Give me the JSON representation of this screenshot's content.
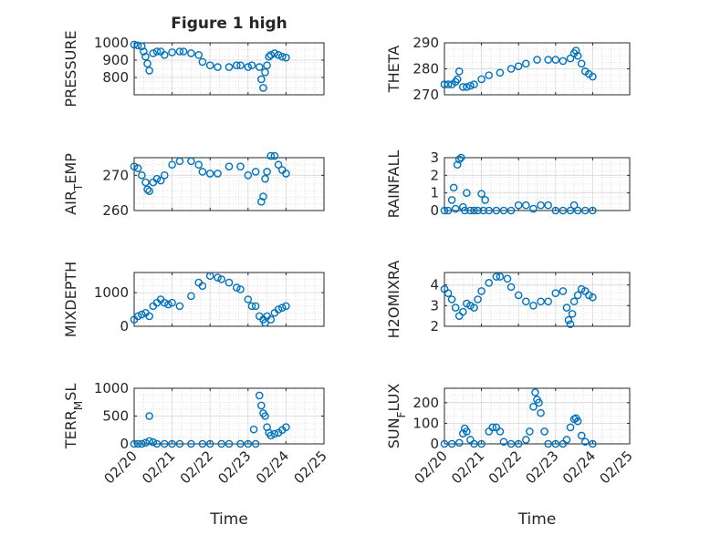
{
  "figure": {
    "title": "Figure 1 high"
  },
  "colors": {
    "marker": "#0072BD",
    "axes": "#262626",
    "grid": "#c8c8c8",
    "background": "#ffffff"
  },
  "chart_data": [
    {
      "type": "scatter",
      "title": "Figure 1 high",
      "ylabel": "PRESSURE",
      "xlabel": "",
      "xlim": [
        0,
        5
      ],
      "ylim": [
        700,
        1000
      ],
      "yticks": [
        800,
        900,
        1000
      ],
      "xticklabels": [],
      "grid": true,
      "marker": "open-circle",
      "x": [
        0.0,
        0.1,
        0.2,
        0.25,
        0.3,
        0.35,
        0.4,
        0.5,
        0.6,
        0.7,
        0.8,
        1.0,
        1.2,
        1.3,
        1.5,
        1.7,
        1.8,
        2.0,
        2.2,
        2.5,
        2.7,
        2.8,
        3.0,
        3.1,
        3.3,
        3.35,
        3.4,
        3.45,
        3.5,
        3.55,
        3.6,
        3.7,
        3.8,
        3.9,
        4.0
      ],
      "y": [
        990,
        985,
        980,
        950,
        920,
        880,
        840,
        940,
        950,
        950,
        930,
        945,
        950,
        950,
        940,
        930,
        890,
        870,
        860,
        860,
        870,
        870,
        860,
        870,
        860,
        790,
        740,
        830,
        870,
        920,
        930,
        940,
        930,
        920,
        915
      ]
    },
    {
      "type": "scatter",
      "title": "",
      "ylabel": "THETA",
      "xlabel": "",
      "xlim": [
        0,
        5
      ],
      "ylim": [
        270,
        290
      ],
      "yticks": [
        270,
        280,
        290
      ],
      "xticklabels": [],
      "grid": true,
      "marker": "open-circle",
      "x": [
        0.0,
        0.1,
        0.2,
        0.3,
        0.35,
        0.4,
        0.5,
        0.6,
        0.7,
        0.8,
        1.0,
        1.2,
        1.5,
        1.8,
        2.0,
        2.2,
        2.5,
        2.8,
        3.0,
        3.2,
        3.4,
        3.5,
        3.55,
        3.6,
        3.7,
        3.8,
        3.9,
        4.0
      ],
      "y": [
        274,
        274,
        274,
        275,
        276,
        279,
        273,
        273,
        273.5,
        274,
        276,
        277.5,
        278.5,
        280,
        281,
        282,
        283.5,
        283.5,
        283.5,
        283,
        284,
        286,
        287,
        285,
        282,
        279,
        278,
        277
      ]
    },
    {
      "type": "scatter",
      "title": "",
      "ylabel": "AIR_TEMP",
      "xlabel": "",
      "xlim": [
        0,
        5
      ],
      "ylim": [
        260,
        275
      ],
      "yticks": [
        260,
        270
      ],
      "xticklabels": [],
      "grid": true,
      "marker": "open-circle",
      "x": [
        0.0,
        0.1,
        0.2,
        0.3,
        0.35,
        0.4,
        0.5,
        0.6,
        0.7,
        0.8,
        1.0,
        1.2,
        1.5,
        1.7,
        1.8,
        2.0,
        2.2,
        2.5,
        2.8,
        3.0,
        3.2,
        3.35,
        3.4,
        3.45,
        3.5,
        3.6,
        3.7,
        3.8,
        3.9,
        4.0
      ],
      "y": [
        272.5,
        272,
        270,
        268,
        266,
        265.5,
        268,
        269,
        268.5,
        270,
        273,
        274,
        274,
        273,
        271,
        270.5,
        270.5,
        272.5,
        272.5,
        270,
        271,
        262.5,
        264,
        269,
        271,
        275.5,
        275.5,
        273,
        271.5,
        270.5
      ]
    },
    {
      "type": "scatter",
      "title": "",
      "ylabel": "RAINFALL",
      "xlabel": "",
      "xlim": [
        0,
        5
      ],
      "ylim": [
        0,
        3
      ],
      "yticks": [
        0,
        1,
        2,
        3
      ],
      "xticklabels": [],
      "grid": true,
      "marker": "open-circle",
      "x": [
        0.0,
        0.1,
        0.2,
        0.25,
        0.3,
        0.35,
        0.4,
        0.45,
        0.5,
        0.55,
        0.6,
        0.7,
        0.8,
        0.9,
        1.0,
        1.05,
        1.1,
        1.2,
        1.4,
        1.6,
        1.8,
        2.0,
        2.2,
        2.4,
        2.6,
        2.8,
        3.0,
        3.2,
        3.4,
        3.5,
        3.6,
        3.8,
        4.0
      ],
      "y": [
        0,
        0,
        0.6,
        1.3,
        0.1,
        2.6,
        2.9,
        3.0,
        0.2,
        0,
        1.0,
        0,
        0,
        0,
        0.95,
        0,
        0.6,
        0,
        0,
        0,
        0,
        0.3,
        0.3,
        0.1,
        0.3,
        0.3,
        0,
        0,
        0,
        0.3,
        0,
        0,
        0
      ]
    },
    {
      "type": "scatter",
      "title": "",
      "ylabel": "MIXDEPTH",
      "xlabel": "",
      "xlim": [
        0,
        5
      ],
      "ylim": [
        0,
        1600
      ],
      "yticks": [
        0,
        1000
      ],
      "xticklabels": [],
      "grid": true,
      "marker": "open-circle",
      "x": [
        0.0,
        0.1,
        0.2,
        0.3,
        0.4,
        0.5,
        0.6,
        0.7,
        0.8,
        0.9,
        1.0,
        1.2,
        1.5,
        1.7,
        1.8,
        2.0,
        2.2,
        2.3,
        2.5,
        2.7,
        2.8,
        3.0,
        3.1,
        3.2,
        3.3,
        3.4,
        3.45,
        3.5,
        3.6,
        3.7,
        3.8,
        3.9,
        4.0
      ],
      "y": [
        200,
        300,
        350,
        400,
        300,
        600,
        700,
        800,
        700,
        650,
        700,
        600,
        900,
        1300,
        1200,
        1500,
        1450,
        1400,
        1300,
        1150,
        1100,
        800,
        600,
        600,
        300,
        200,
        100,
        300,
        200,
        400,
        500,
        550,
        600
      ]
    },
    {
      "type": "scatter",
      "title": "",
      "ylabel": "H2OMIXRA",
      "xlabel": "",
      "xlim": [
        0,
        5
      ],
      "ylim": [
        2,
        4.6
      ],
      "yticks": [
        2,
        3,
        4
      ],
      "xticklabels": [],
      "grid": true,
      "marker": "open-circle",
      "x": [
        0.0,
        0.1,
        0.2,
        0.3,
        0.4,
        0.5,
        0.6,
        0.7,
        0.8,
        0.9,
        1.0,
        1.2,
        1.4,
        1.5,
        1.7,
        1.8,
        2.0,
        2.2,
        2.4,
        2.6,
        2.8,
        3.0,
        3.2,
        3.3,
        3.35,
        3.4,
        3.45,
        3.5,
        3.6,
        3.7,
        3.8,
        3.9,
        4.0
      ],
      "y": [
        3.8,
        3.6,
        3.3,
        2.9,
        2.5,
        2.7,
        3.1,
        3.0,
        2.9,
        3.3,
        3.7,
        4.1,
        4.4,
        4.4,
        4.3,
        3.9,
        3.5,
        3.2,
        3.0,
        3.2,
        3.2,
        3.6,
        3.7,
        2.9,
        2.3,
        2.1,
        2.6,
        3.2,
        3.5,
        3.8,
        3.7,
        3.5,
        3.4
      ]
    },
    {
      "type": "scatter",
      "title": "",
      "ylabel": "TERR_MSL",
      "xlabel": "Time",
      "xlim": [
        0,
        5
      ],
      "ylim": [
        0,
        1000
      ],
      "yticks": [
        0,
        500,
        1000
      ],
      "xticklabels": [
        "02/20",
        "02/21",
        "02/22",
        "02/23",
        "02/24",
        "02/25"
      ],
      "grid": true,
      "marker": "open-circle",
      "x": [
        0.0,
        0.1,
        0.2,
        0.3,
        0.4,
        0.5,
        0.6,
        0.8,
        1.0,
        1.2,
        1.5,
        1.8,
        2.0,
        2.3,
        2.5,
        2.8,
        3.0,
        3.15,
        3.2,
        3.3,
        3.35,
        3.4,
        3.45,
        3.5,
        3.55,
        3.6,
        3.7,
        3.8,
        3.9,
        4.0,
        0.4
      ],
      "y": [
        0,
        0,
        0,
        20,
        50,
        30,
        0,
        0,
        0,
        0,
        0,
        0,
        0,
        0,
        0,
        0,
        0,
        260,
        0,
        870,
        690,
        550,
        500,
        300,
        200,
        150,
        180,
        200,
        250,
        300,
        500
      ]
    },
    {
      "type": "scatter",
      "title": "",
      "ylabel": "SUN_FLUX",
      "xlabel": "Time",
      "xlim": [
        0,
        5
      ],
      "ylim": [
        0,
        270
      ],
      "yticks": [
        0,
        100,
        200
      ],
      "xticklabels": [
        "02/20",
        "02/21",
        "02/22",
        "02/23",
        "02/24",
        "02/25"
      ],
      "grid": true,
      "marker": "open-circle",
      "x": [
        0.0,
        0.2,
        0.4,
        0.5,
        0.55,
        0.6,
        0.7,
        0.8,
        1.0,
        1.2,
        1.3,
        1.4,
        1.5,
        1.6,
        1.8,
        2.0,
        2.2,
        2.3,
        2.4,
        2.45,
        2.5,
        2.55,
        2.6,
        2.7,
        2.8,
        3.0,
        3.2,
        3.3,
        3.4,
        3.5,
        3.55,
        3.6,
        3.7,
        3.8,
        4.0
      ],
      "y": [
        0,
        0,
        5,
        50,
        75,
        60,
        20,
        0,
        0,
        60,
        80,
        80,
        60,
        10,
        0,
        0,
        20,
        60,
        180,
        250,
        215,
        200,
        150,
        60,
        0,
        0,
        0,
        20,
        80,
        120,
        125,
        110,
        40,
        10,
        0
      ]
    }
  ]
}
